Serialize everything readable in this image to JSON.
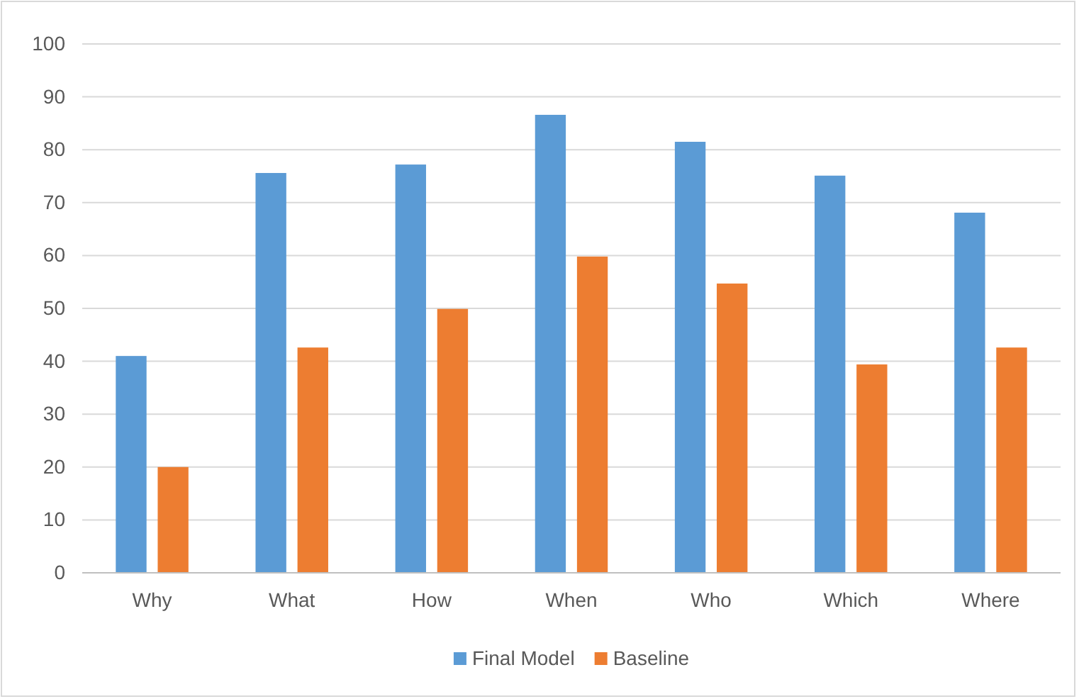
{
  "chart_data": {
    "type": "bar",
    "categories": [
      "Why",
      "What",
      "How",
      "When",
      "Who",
      "Which",
      "Where"
    ],
    "series": [
      {
        "name": "Final Model",
        "color": "#5b9bd5",
        "values": [
          41.0,
          75.6,
          77.2,
          86.6,
          81.5,
          75.1,
          68.1
        ]
      },
      {
        "name": "Baseline",
        "color": "#ed7d31",
        "values": [
          20.0,
          42.6,
          49.9,
          59.8,
          54.7,
          39.4,
          42.6
        ]
      }
    ],
    "ylim": [
      0,
      100
    ],
    "yticks": [
      0,
      10,
      20,
      30,
      40,
      50,
      60,
      70,
      80,
      90,
      100
    ],
    "grid": "y",
    "legend": "bottom"
  }
}
